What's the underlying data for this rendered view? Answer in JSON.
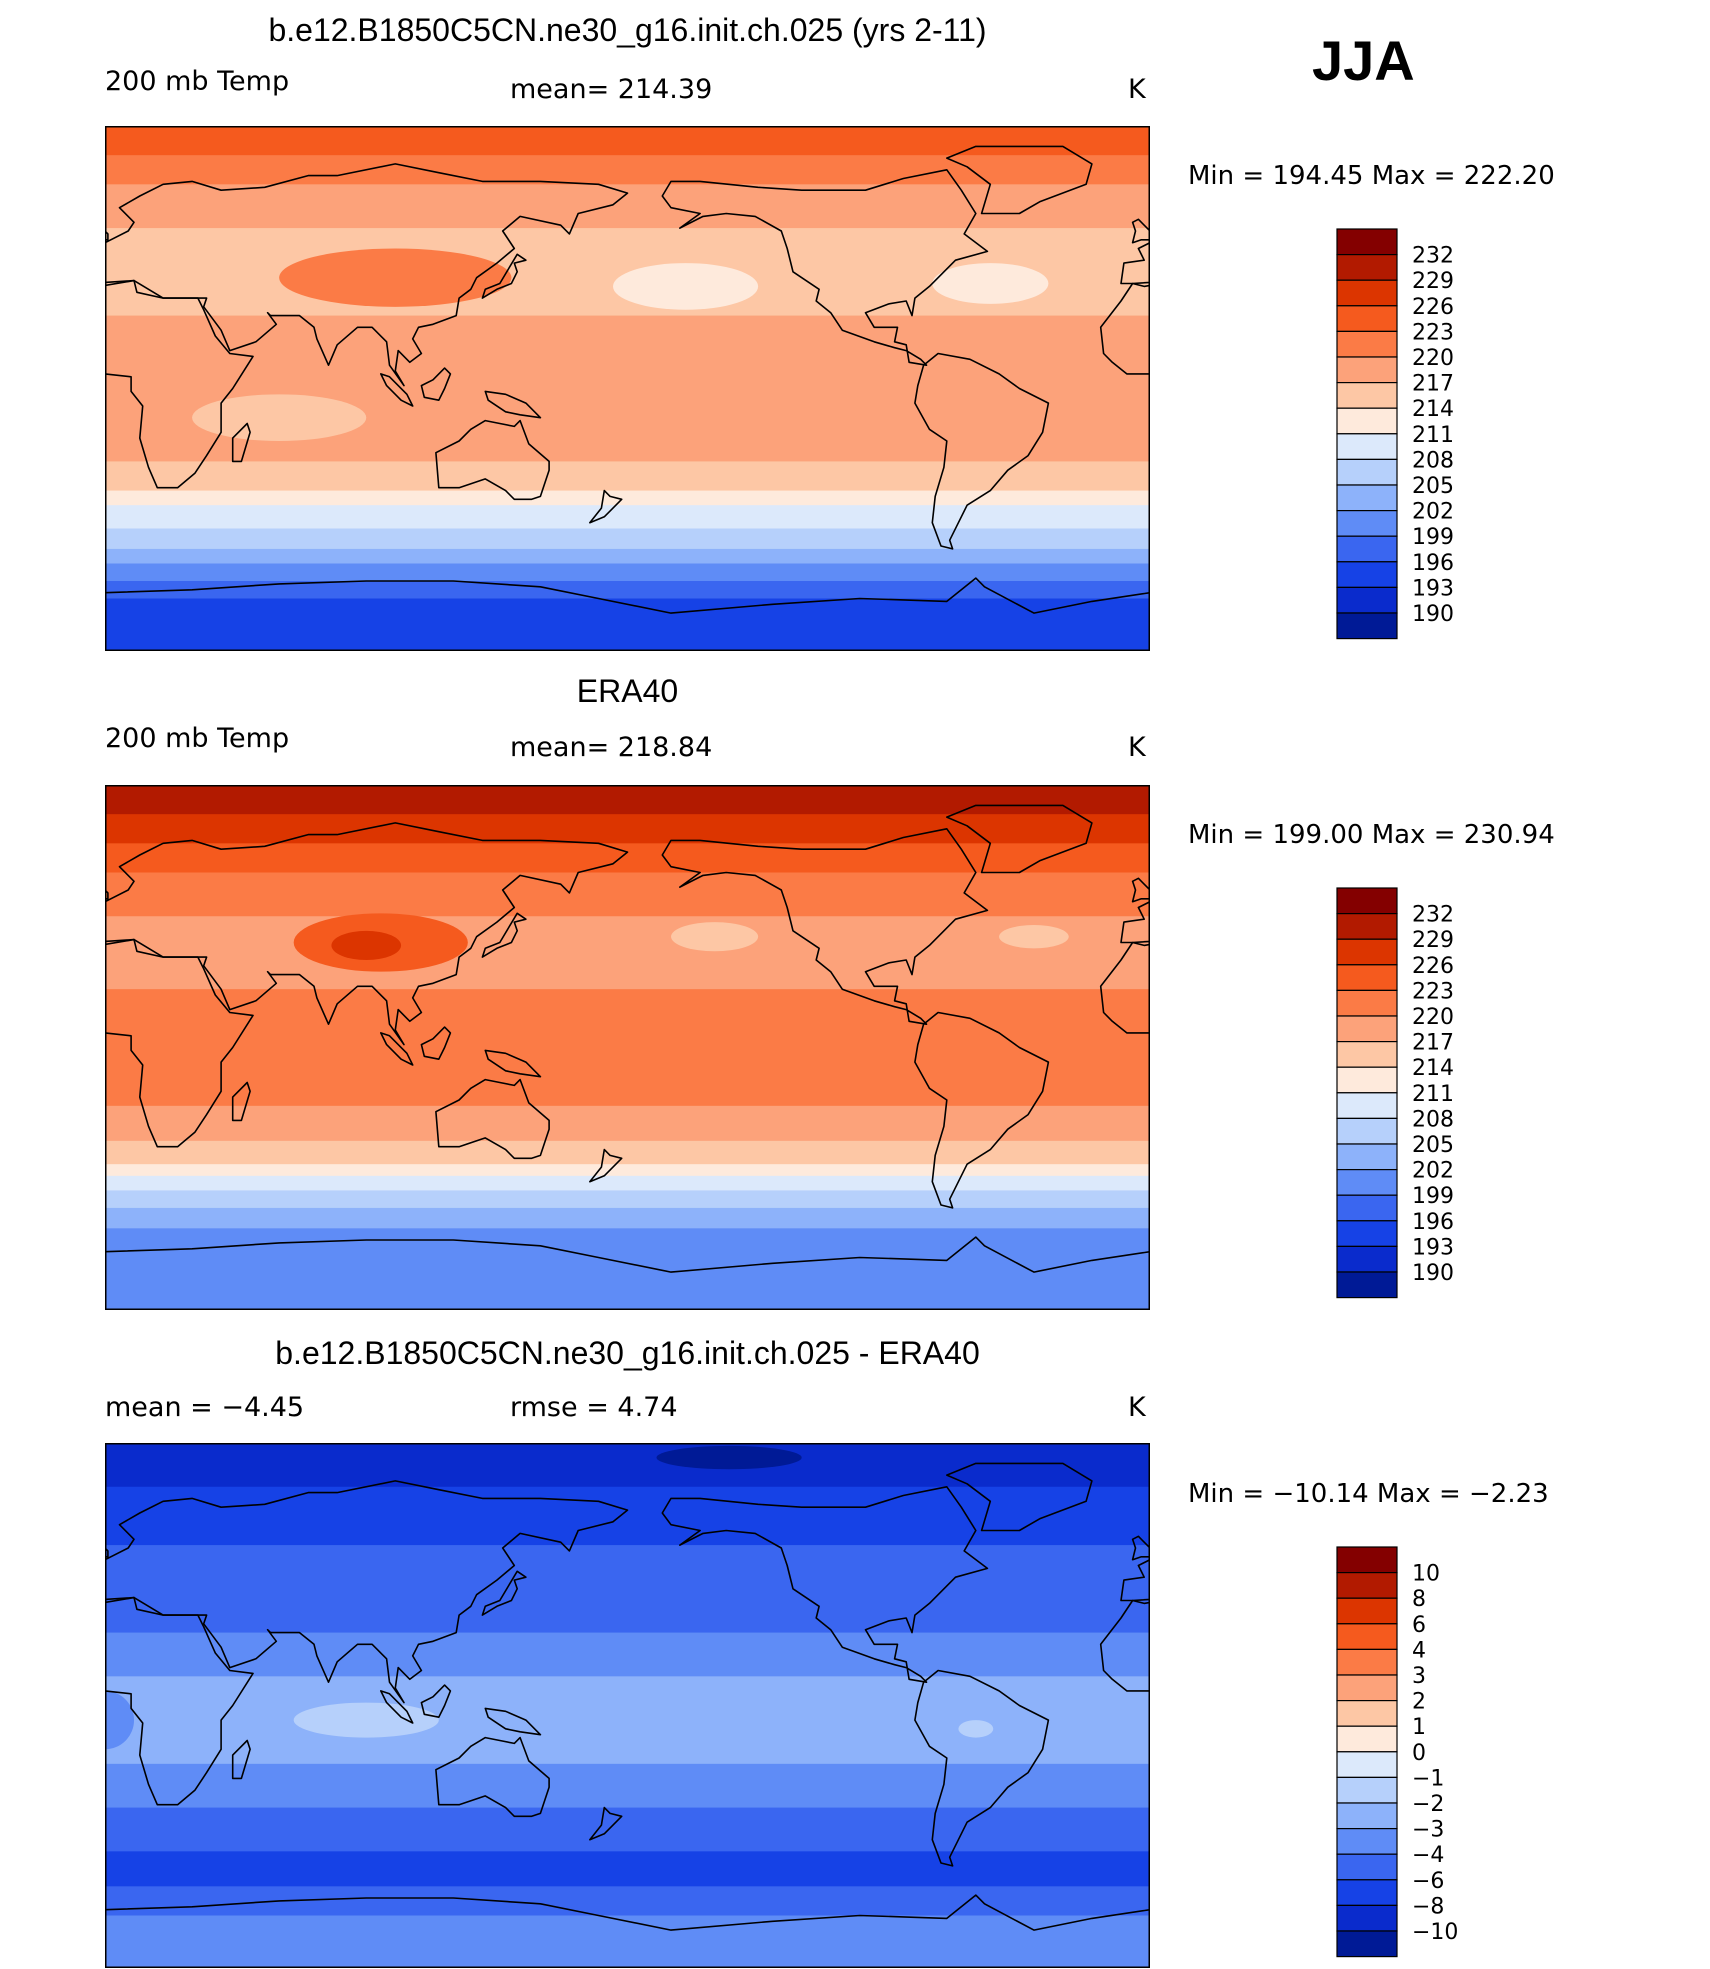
{
  "season": "JJA",
  "chart_data": [
    {
      "type": "heatmap",
      "title": "b.e12.B1850C5CN.ne30_g16.init.ch.025 (yrs 2-11)",
      "left_label": "200 mb Temp",
      "center_label": "mean= 214.39",
      "units": "K",
      "minmax": "Min  =  194.45  Max  =  222.20",
      "colorbar": {
        "labels": [
          "232",
          "229",
          "226",
          "223",
          "220",
          "217",
          "214",
          "211",
          "208",
          "205",
          "202",
          "199",
          "196",
          "193",
          "190"
        ],
        "colors": [
          "#840000",
          "#b21a00",
          "#dc3500",
          "#f55a1e",
          "#fb7b46",
          "#fca27a",
          "#fdc7a5",
          "#feeadc",
          "#dce9fb",
          "#b6d0fb",
          "#8db2fa",
          "#5f8cf6",
          "#3a66f0",
          "#1642e6",
          "#0a2bcc",
          "#001a96"
        ]
      },
      "bands": [
        {
          "lat": [
            90,
            80
          ],
          "color": "#f55a1e"
        },
        {
          "lat": [
            80,
            70
          ],
          "color": "#fb7b46"
        },
        {
          "lat": [
            70,
            55
          ],
          "color": "#fca27a"
        },
        {
          "lat": [
            55,
            25
          ],
          "color": "#fdc7a5"
        },
        {
          "lat": [
            25,
            -25
          ],
          "color": "#fca27a"
        },
        {
          "lat": [
            -25,
            -35
          ],
          "color": "#fdc7a5"
        },
        {
          "lat": [
            -35,
            -40
          ],
          "color": "#feeadc"
        },
        {
          "lat": [
            -40,
            -48
          ],
          "color": "#dce9fb"
        },
        {
          "lat": [
            -48,
            -55
          ],
          "color": "#b6d0fb"
        },
        {
          "lat": [
            -55,
            -60
          ],
          "color": "#8db2fa"
        },
        {
          "lat": [
            -60,
            -66
          ],
          "color": "#5f8cf6"
        },
        {
          "lat": [
            -66,
            -72
          ],
          "color": "#3a66f0"
        },
        {
          "lat": [
            -72,
            -90
          ],
          "color": "#1642e6"
        }
      ],
      "blobs": [
        {
          "lon": 100,
          "lat": 38,
          "rlon": 40,
          "rlat": 10,
          "color": "#fb7b46"
        },
        {
          "lon": 200,
          "lat": 35,
          "rlon": 25,
          "rlat": 8,
          "color": "#feeadc"
        },
        {
          "lon": 305,
          "lat": 36,
          "rlon": 20,
          "rlat": 7,
          "color": "#feeadc"
        },
        {
          "lon": 60,
          "lat": -10,
          "rlon": 30,
          "rlat": 8,
          "color": "#fdc7a5"
        }
      ]
    },
    {
      "type": "heatmap",
      "title": "ERA40",
      "left_label": "200 mb Temp",
      "center_label": "mean= 218.84",
      "units": "K",
      "minmax": "Min  =  199.00  Max  =  230.94",
      "colorbar": {
        "labels": [
          "232",
          "229",
          "226",
          "223",
          "220",
          "217",
          "214",
          "211",
          "208",
          "205",
          "202",
          "199",
          "196",
          "193",
          "190"
        ],
        "colors": [
          "#840000",
          "#b21a00",
          "#dc3500",
          "#f55a1e",
          "#fb7b46",
          "#fca27a",
          "#fdc7a5",
          "#feeadc",
          "#dce9fb",
          "#b6d0fb",
          "#8db2fa",
          "#5f8cf6",
          "#3a66f0",
          "#1642e6",
          "#0a2bcc",
          "#001a96"
        ]
      },
      "bands": [
        {
          "lat": [
            90,
            80
          ],
          "color": "#b21a00"
        },
        {
          "lat": [
            80,
            70
          ],
          "color": "#dc3500"
        },
        {
          "lat": [
            70,
            60
          ],
          "color": "#f55a1e"
        },
        {
          "lat": [
            60,
            45
          ],
          "color": "#fb7b46"
        },
        {
          "lat": [
            45,
            20
          ],
          "color": "#fca27a"
        },
        {
          "lat": [
            20,
            -20
          ],
          "color": "#fb7b46"
        },
        {
          "lat": [
            -20,
            -32
          ],
          "color": "#fca27a"
        },
        {
          "lat": [
            -32,
            -40
          ],
          "color": "#fdc7a5"
        },
        {
          "lat": [
            -40,
            -44
          ],
          "color": "#feeadc"
        },
        {
          "lat": [
            -44,
            -49
          ],
          "color": "#dce9fb"
        },
        {
          "lat": [
            -49,
            -55
          ],
          "color": "#b6d0fb"
        },
        {
          "lat": [
            -55,
            -62
          ],
          "color": "#8db2fa"
        },
        {
          "lat": [
            -62,
            -90
          ],
          "color": "#5f8cf6"
        }
      ],
      "blobs": [
        {
          "lon": 95,
          "lat": 36,
          "rlon": 30,
          "rlat": 10,
          "color": "#f55a1e"
        },
        {
          "lon": 90,
          "lat": 35,
          "rlon": 12,
          "rlat": 5,
          "color": "#dc3500"
        },
        {
          "lon": 210,
          "lat": 38,
          "rlon": 15,
          "rlat": 5,
          "color": "#fdc7a5"
        },
        {
          "lon": 320,
          "lat": 38,
          "rlon": 12,
          "rlat": 4,
          "color": "#fdc7a5"
        }
      ]
    },
    {
      "type": "heatmap",
      "title": "b.e12.B1850C5CN.ne30_g16.init.ch.025 - ERA40",
      "left_label": "mean =   −4.45",
      "center_label": "rmse =     4.74",
      "units": "K",
      "minmax": "Min  =  −10.14  Max  =   −2.23",
      "colorbar": {
        "labels": [
          "10",
          "8",
          "6",
          "4",
          "3",
          "2",
          "1",
          "0",
          "−1",
          "−2",
          "−3",
          "−4",
          "−6",
          "−8",
          "−10"
        ],
        "colors": [
          "#840000",
          "#b21a00",
          "#dc3500",
          "#f55a1e",
          "#fb7b46",
          "#fca27a",
          "#fdc7a5",
          "#feeadc",
          "#dce9fb",
          "#b6d0fb",
          "#8db2fa",
          "#5f8cf6",
          "#3a66f0",
          "#1642e6",
          "#0a2bcc",
          "#001a96"
        ]
      },
      "bands": [
        {
          "lat": [
            90,
            75
          ],
          "color": "#0a2bcc"
        },
        {
          "lat": [
            75,
            55
          ],
          "color": "#1642e6"
        },
        {
          "lat": [
            55,
            25
          ],
          "color": "#3a66f0"
        },
        {
          "lat": [
            25,
            10
          ],
          "color": "#5f8cf6"
        },
        {
          "lat": [
            10,
            -20
          ],
          "color": "#8db2fa"
        },
        {
          "lat": [
            -20,
            -35
          ],
          "color": "#5f8cf6"
        },
        {
          "lat": [
            -35,
            -50
          ],
          "color": "#3a66f0"
        },
        {
          "lat": [
            -50,
            -62
          ],
          "color": "#1642e6"
        },
        {
          "lat": [
            -62,
            -72
          ],
          "color": "#3a66f0"
        },
        {
          "lat": [
            -72,
            -90
          ],
          "color": "#5f8cf6"
        }
      ],
      "blobs": [
        {
          "lon": 215,
          "lat": 85,
          "rlon": 25,
          "rlat": 4,
          "color": "#001a96"
        },
        {
          "lon": 90,
          "lat": -5,
          "rlon": 25,
          "rlat": 6,
          "color": "#b6d0fb"
        },
        {
          "lon": 300,
          "lat": -8,
          "rlon": 6,
          "rlat": 3,
          "color": "#b6d0fb"
        },
        {
          "lon": 0,
          "lat": -5,
          "rlon": 10,
          "rlat": 10,
          "color": "#5f8cf6"
        }
      ]
    }
  ]
}
